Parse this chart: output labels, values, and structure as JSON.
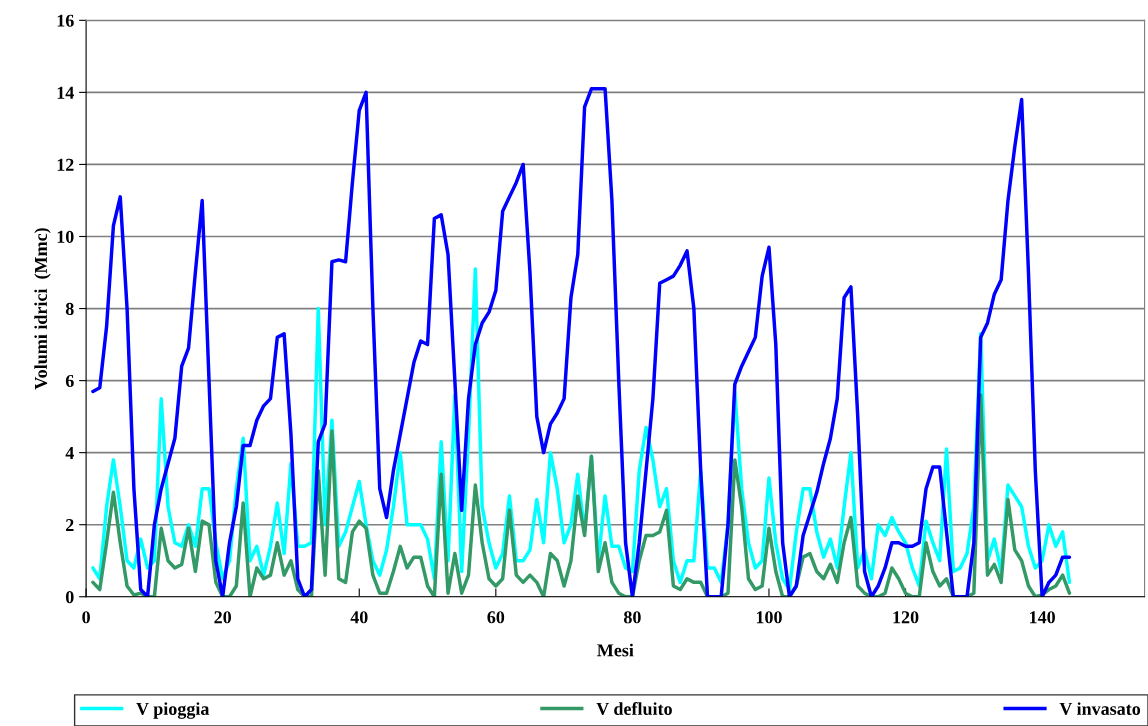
{
  "chart_data": {
    "type": "line",
    "xlabel": "Mesi",
    "ylabel": "Volumi idrici  (Mmc)",
    "x": [
      1,
      2,
      3,
      4,
      5,
      6,
      7,
      8,
      9,
      10,
      11,
      12,
      13,
      14,
      15,
      16,
      17,
      18,
      19,
      20,
      21,
      22,
      23,
      24,
      25,
      26,
      27,
      28,
      29,
      30,
      31,
      32,
      33,
      34,
      35,
      36,
      37,
      38,
      39,
      40,
      41,
      42,
      43,
      44,
      45,
      46,
      47,
      48,
      49,
      50,
      51,
      52,
      53,
      54,
      55,
      56,
      57,
      58,
      59,
      60,
      61,
      62,
      63,
      64,
      65,
      66,
      67,
      68,
      69,
      70,
      71,
      72,
      73,
      74,
      75,
      76,
      77,
      78,
      79,
      80,
      81,
      82,
      83,
      84,
      85,
      86,
      87,
      88,
      89,
      90,
      91,
      92,
      93,
      94,
      95,
      96,
      97,
      98,
      99,
      100,
      101,
      102,
      103,
      104,
      105,
      106,
      107,
      108,
      109,
      110,
      111,
      112,
      113,
      114,
      115,
      116,
      117,
      118,
      119,
      120,
      121,
      122,
      123,
      124,
      125,
      126,
      127,
      128,
      129,
      130,
      131,
      132,
      133,
      134,
      135,
      136,
      137,
      138,
      139,
      140,
      141,
      142,
      143,
      144
    ],
    "series": [
      {
        "name": "V pioggia",
        "color": "#00ffff",
        "values": [
          0.8,
          0.5,
          2.5,
          3.8,
          2.5,
          1,
          0.8,
          1.6,
          0.8,
          1,
          5.5,
          2.5,
          1.5,
          1.4,
          2,
          1.4,
          3,
          3,
          1.5,
          0.5,
          1,
          3,
          4.4,
          1,
          1.4,
          0.6,
          1.4,
          2.6,
          1.2,
          3.7,
          1.4,
          1.4,
          1.5,
          8,
          2,
          4.9,
          1.4,
          1.8,
          2.5,
          3.2,
          2,
          1,
          0.6,
          1.3,
          2.5,
          4,
          2,
          2,
          2,
          1.6,
          0.5,
          4.3,
          1,
          5.6,
          0.7,
          4.5,
          9.1,
          2.5,
          1.5,
          0.8,
          1.2,
          2.8,
          1,
          1,
          1.3,
          2.7,
          1.5,
          4,
          3,
          1.5,
          2,
          3.4,
          1.8,
          3.9,
          1,
          2.8,
          1.4,
          1.4,
          0.8,
          0.7,
          3.5,
          4.7,
          3.8,
          2.5,
          3,
          1,
          0.4,
          1,
          1,
          3.5,
          0.8,
          0.8,
          0.4,
          2,
          5.7,
          3,
          1.5,
          0.8,
          1,
          3.3,
          1.5,
          0.5,
          0.2,
          1.8,
          3,
          3,
          1.8,
          1.1,
          1.6,
          0.8,
          2.5,
          4,
          0.8,
          1.3,
          0.5,
          2,
          1.7,
          2.2,
          1.8,
          1.5,
          0.8,
          0.3,
          2.1,
          1.5,
          1,
          4.1,
          0.7,
          0.8,
          1.2,
          2.5,
          7.3,
          1,
          1.6,
          0.7,
          3.1,
          2.8,
          2.5,
          1.4,
          0.8,
          1,
          2,
          1.4,
          1.8,
          0.4
        ]
      },
      {
        "name": "V defluito",
        "color": "#339966",
        "values": [
          0.4,
          0.2,
          1.5,
          2.9,
          1.5,
          0.3,
          0.05,
          0.1,
          0,
          0,
          1.9,
          1,
          0.8,
          0.9,
          1.9,
          0.7,
          2.1,
          2,
          0.4,
          0,
          0,
          0.3,
          2.6,
          0,
          0.8,
          0.5,
          0.6,
          1.5,
          0.6,
          1,
          0.2,
          0,
          0,
          3.5,
          0.6,
          4.6,
          0.5,
          0.4,
          1.8,
          2.1,
          1.9,
          0.6,
          0.1,
          0.1,
          0.7,
          1.4,
          0.8,
          1.1,
          1.1,
          0.3,
          0,
          3.4,
          0.1,
          1.2,
          0.1,
          0.6,
          3.1,
          1.5,
          0.5,
          0.3,
          0.5,
          2.4,
          0.6,
          0.4,
          0.6,
          0.4,
          0,
          1.2,
          1,
          0.3,
          1,
          2.8,
          1.7,
          3.9,
          0.7,
          1.5,
          0.4,
          0.1,
          0,
          0,
          1,
          1.7,
          1.7,
          1.8,
          2.4,
          0.3,
          0.2,
          0.5,
          0.4,
          0.4,
          0,
          0,
          0,
          0.1,
          3.8,
          2.5,
          0.5,
          0.2,
          0.3,
          1.9,
          0.7,
          0,
          0,
          0.3,
          1.1,
          1.2,
          0.7,
          0.5,
          0.9,
          0.4,
          1.5,
          2.2,
          0.3,
          0.1,
          0,
          0,
          0.1,
          0.8,
          0.5,
          0.1,
          0,
          0,
          1.5,
          0.7,
          0.3,
          0.5,
          0,
          0,
          0,
          0.1,
          5.6,
          0.6,
          0.9,
          0.4,
          2.7,
          1.3,
          1,
          0.3,
          0,
          0.05,
          0.2,
          0.3,
          0.6,
          0.1
        ]
      },
      {
        "name": "V invasato",
        "color": "#0000ff",
        "values": [
          5.7,
          5.8,
          7.5,
          10.3,
          11.1,
          8,
          3,
          0.2,
          0,
          2,
          3,
          3.7,
          4.4,
          6.4,
          6.9,
          9,
          11,
          6,
          1,
          0,
          1.5,
          2.5,
          4.2,
          4.2,
          4.9,
          5.3,
          5.5,
          7.2,
          7.3,
          4.5,
          0.5,
          0,
          0.2,
          4.3,
          4.8,
          9.3,
          9.35,
          9.3,
          11.5,
          13.5,
          14,
          8,
          3,
          2.2,
          3.5,
          4.5,
          5.5,
          6.5,
          7.1,
          7,
          10.5,
          10.6,
          9.5,
          6,
          2.4,
          5.5,
          7,
          7.6,
          7.9,
          8.5,
          10.7,
          11.1,
          11.5,
          12,
          9,
          5,
          4,
          4.8,
          5.1,
          5.5,
          8.3,
          9.5,
          13.6,
          14.1,
          14.1,
          14.1,
          11,
          6,
          1.5,
          0,
          1.5,
          3.5,
          5.5,
          8.7,
          8.8,
          8.9,
          9.2,
          9.6,
          8,
          3.5,
          0,
          0,
          0,
          2,
          5.9,
          6.4,
          6.8,
          7.2,
          8.9,
          9.7,
          7,
          1.5,
          0,
          0.3,
          1.7,
          2.3,
          2.9,
          3.7,
          4.4,
          5.5,
          8.3,
          8.6,
          5,
          0.7,
          0,
          0.3,
          0.8,
          1.5,
          1.5,
          1.4,
          1.4,
          1.5,
          3,
          3.6,
          3.6,
          1.8,
          0,
          0,
          0,
          1.5,
          7.2,
          7.6,
          8.4,
          8.8,
          11,
          12.5,
          13.8,
          9,
          3.5,
          0,
          0.4,
          0.6,
          1.1,
          1.1
        ]
      }
    ],
    "xlim": [
      0,
      155
    ],
    "xticks": [
      0,
      20,
      40,
      60,
      80,
      100,
      120,
      140
    ],
    "ylim": [
      0,
      16
    ],
    "yticks": [
      0,
      2,
      4,
      6,
      8,
      10,
      12,
      14,
      16
    ],
    "grid": "y",
    "legend": "bottom",
    "marker": "none",
    "line_style": "solid"
  }
}
